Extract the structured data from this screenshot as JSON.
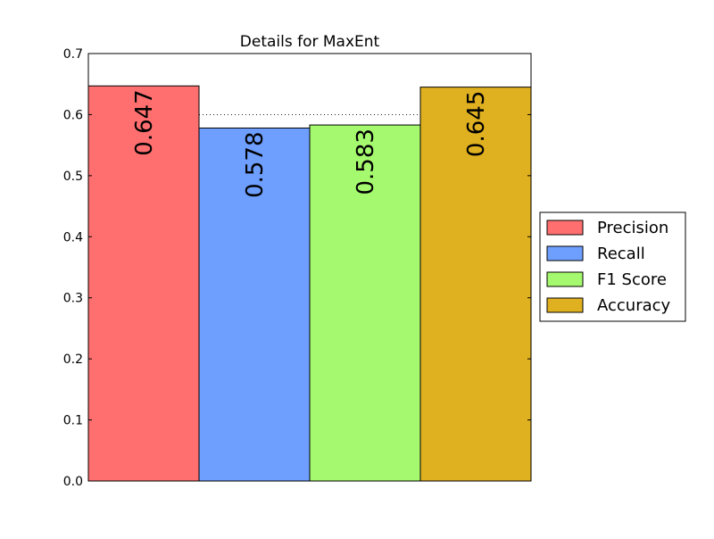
{
  "chart_data": {
    "type": "bar",
    "title": "Details for MaxEnt",
    "xlabel": "",
    "ylabel": "",
    "ylim": [
      0,
      0.7
    ],
    "yticks": [
      "0.0",
      "0.1",
      "0.2",
      "0.3",
      "0.4",
      "0.5",
      "0.6",
      "0.7"
    ],
    "grid": "horizontal dotted",
    "legend_position": "right",
    "series": [
      {
        "name": "Precision",
        "value": 0.647,
        "label": "0.647",
        "color": "#ff6f6f"
      },
      {
        "name": "Recall",
        "value": 0.578,
        "label": "0.578",
        "color": "#6e9fff"
      },
      {
        "name": "F1 Score",
        "value": 0.583,
        "label": "0.583",
        "color": "#a4f96e"
      },
      {
        "name": "Accuracy",
        "value": 0.645,
        "label": "0.645",
        "color": "#dfb01f"
      }
    ]
  }
}
